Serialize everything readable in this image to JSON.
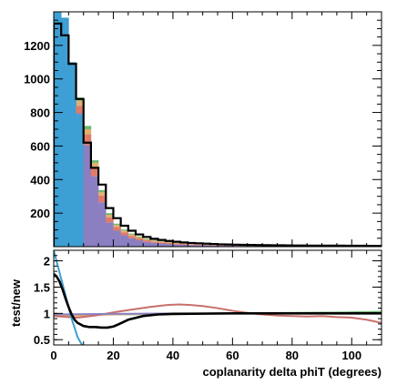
{
  "chart_data": [
    {
      "type": "bar",
      "panel": "top",
      "title": "",
      "xlabel": "",
      "ylabel": "",
      "xlim": [
        0,
        110
      ],
      "ylim": [
        0,
        1400
      ],
      "y_ticks": [
        200,
        400,
        600,
        800,
        1000,
        1200
      ],
      "x_ticks": [
        0,
        20,
        40,
        60,
        80,
        100
      ],
      "bin_width": 2.5,
      "categories": [
        "0-2.5",
        "2.5-5",
        "5-7.5",
        "7.5-10",
        "10-12.5",
        "12.5-15",
        "15-17.5",
        "17.5-20",
        "20-22.5",
        "22.5-25",
        "25-27.5",
        "27.5-30",
        "30-32.5",
        "32.5-35",
        "35-37.5",
        "37.5-40",
        "40-42.5",
        "42.5-45",
        "45-47.5",
        "47.5-50",
        "50-52.5",
        "52.5-55",
        "55-57.5",
        "57.5-60",
        "60-62.5",
        "62.5-65",
        "65-67.5",
        "67.5-70",
        "70-72.5",
        "72.5-75",
        "75-77.5",
        "77.5-80",
        "80-82.5",
        "82.5-85",
        "85-87.5",
        "87.5-90",
        "90-92.5",
        "92.5-95",
        "95-97.5",
        "97.5-100",
        "100-102.5",
        "102.5-105",
        "105-107.5",
        "107.5-110"
      ],
      "series": [
        {
          "role": "stack",
          "color": "#3d9fd3",
          "values": [
            880,
            860,
            830,
            790,
            0,
            0,
            0,
            0,
            0,
            0,
            0,
            0,
            0,
            0,
            0,
            0,
            0,
            0,
            0,
            0,
            0,
            0,
            0,
            0,
            0,
            0,
            0,
            0,
            0,
            0,
            0,
            0,
            0,
            0,
            0,
            0,
            0,
            0,
            0,
            0,
            0,
            0,
            0,
            0
          ]
        },
        {
          "role": "stack",
          "color": "#8b7fc2",
          "values": [
            0,
            0,
            0,
            5,
            605,
            420,
            265,
            145,
            95,
            68,
            50,
            38,
            29,
            23,
            19,
            16,
            13,
            11,
            10,
            9,
            8,
            7,
            6,
            5.5,
            5,
            4.5,
            4,
            4,
            3.5,
            3.5,
            3,
            3,
            3,
            2.5,
            2.5,
            2.5,
            2.5,
            2,
            2,
            2,
            2,
            2,
            2,
            2
          ]
        },
        {
          "role": "stack",
          "color": "#e07b6a",
          "values": [
            0,
            0,
            0,
            45,
            65,
            55,
            40,
            30,
            22,
            18,
            14,
            11,
            9,
            8,
            7,
            6,
            5,
            5,
            4.5,
            4,
            4,
            3.5,
            3,
            3,
            3,
            2.5,
            2.5,
            2.5,
            2,
            2,
            2,
            2,
            2,
            2,
            2,
            2,
            2,
            2,
            2,
            2,
            2,
            2,
            2,
            2
          ]
        },
        {
          "role": "stack",
          "color": "#e0b070",
          "values": [
            0,
            0,
            0,
            30,
            30,
            25,
            20,
            15,
            12,
            10,
            9,
            8,
            7,
            6,
            5.5,
            5,
            4.5,
            4,
            4,
            3.5,
            3,
            3,
            3,
            3,
            2.5,
            2.5,
            2.5,
            2,
            2,
            2,
            2,
            2,
            2,
            2,
            2,
            2,
            2,
            2,
            2,
            2,
            2,
            2,
            2,
            2
          ]
        },
        {
          "role": "stack",
          "color": "#6db872",
          "values": [
            0,
            0,
            0,
            20,
            20,
            15,
            12,
            10,
            8,
            6,
            5,
            4,
            3,
            3,
            2.5,
            2,
            2,
            2,
            2,
            1.5,
            1.5,
            1.5,
            1.5,
            1,
            1,
            1,
            1,
            1,
            1,
            1,
            1,
            1,
            1,
            1,
            1,
            1,
            1,
            1,
            1,
            1,
            1,
            1,
            1,
            1
          ]
        },
        {
          "role": "stack",
          "color": "#3d9fd3",
          "values": [
            525,
            505,
            270,
            0,
            0,
            0,
            0,
            0,
            0,
            0,
            0,
            0,
            0,
            0,
            0,
            0,
            0,
            0,
            0,
            0,
            0,
            0,
            0,
            0,
            0,
            0,
            0,
            0,
            0,
            0,
            0,
            0,
            0,
            0,
            0,
            0,
            0,
            0,
            0,
            0,
            0,
            0,
            0,
            0
          ]
        },
        {
          "role": "outline",
          "color": "#000000",
          "values": [
            1330,
            1260,
            1090,
            880,
            620,
            470,
            370,
            230,
            170,
            125,
            95,
            73,
            58,
            47,
            40,
            34,
            29,
            25,
            22,
            20,
            18,
            16,
            14,
            13,
            12,
            11,
            10,
            9.5,
            9,
            8.5,
            8,
            7.5,
            7,
            7,
            6.5,
            6.5,
            6,
            6,
            6,
            5.5,
            5.5,
            5.5,
            5,
            5
          ]
        }
      ]
    },
    {
      "type": "line",
      "panel": "bottom",
      "title": "",
      "xlabel": "coplanarity delta phiT (degrees)",
      "ylabel": "test/new",
      "xlim": [
        0,
        110
      ],
      "ylim": [
        0.4,
        2.2
      ],
      "y_ticks": [
        0.5,
        1,
        1.5,
        2
      ],
      "y_tick_labels": [
        "0.5",
        "1",
        "1.5",
        "2"
      ],
      "x_ticks": [
        0,
        20,
        40,
        60,
        80,
        100
      ],
      "series": [
        {
          "color": "#6db872",
          "x": [
            0,
            10,
            20,
            30,
            40,
            50,
            60,
            70,
            80,
            90,
            100,
            110
          ],
          "values": [
            0.97,
            0.975,
            0.98,
            0.985,
            0.99,
            0.995,
            1.0,
            1.005,
            1.01,
            1.015,
            1.02,
            1.03
          ]
        },
        {
          "color": "#e0b070",
          "x": [
            0,
            10,
            20,
            30,
            40,
            50,
            60,
            70,
            80,
            90,
            100,
            110
          ],
          "values": [
            0.95,
            0.96,
            0.98,
            0.99,
            1.0,
            1.0,
            1.0,
            1.0,
            1.0,
            1.0,
            1.0,
            1.0
          ]
        },
        {
          "color": "#c8706b",
          "x": [
            0,
            8,
            14,
            20,
            26,
            32,
            38,
            42,
            46,
            50,
            55,
            60,
            65,
            70,
            75,
            80,
            85,
            90,
            95,
            100,
            105,
            110
          ],
          "values": [
            0.95,
            0.92,
            0.96,
            1.02,
            1.07,
            1.12,
            1.16,
            1.17,
            1.16,
            1.14,
            1.1,
            1.05,
            1.01,
            0.98,
            0.96,
            0.95,
            0.94,
            0.95,
            0.93,
            0.92,
            0.88,
            0.82
          ]
        },
        {
          "color": "#8b7fc2",
          "x": [
            0,
            20,
            40,
            60,
            80,
            100,
            110
          ],
          "values": [
            0.98,
            0.99,
            1.0,
            1.0,
            1.0,
            1.0,
            1.0
          ]
        },
        {
          "color": "#3d9fd3",
          "x": [
            0,
            3,
            6,
            8,
            10
          ],
          "values": [
            2.2,
            1.55,
            0.9,
            0.55,
            0.35
          ]
        },
        {
          "color": "#000000",
          "x": [
            0,
            1,
            2,
            3,
            4,
            5,
            6,
            7,
            8,
            10,
            12,
            14,
            16,
            18,
            20,
            22,
            25,
            30,
            35,
            40,
            50,
            60,
            70,
            80,
            90,
            100,
            110
          ],
          "values": [
            1.75,
            1.7,
            1.6,
            1.45,
            1.28,
            1.12,
            0.98,
            0.88,
            0.82,
            0.76,
            0.74,
            0.74,
            0.73,
            0.73,
            0.75,
            0.8,
            0.88,
            0.95,
            0.98,
            0.99,
            0.995,
            1.0,
            1.0,
            1.0,
            1.0,
            1.0,
            1.0
          ]
        }
      ]
    }
  ]
}
